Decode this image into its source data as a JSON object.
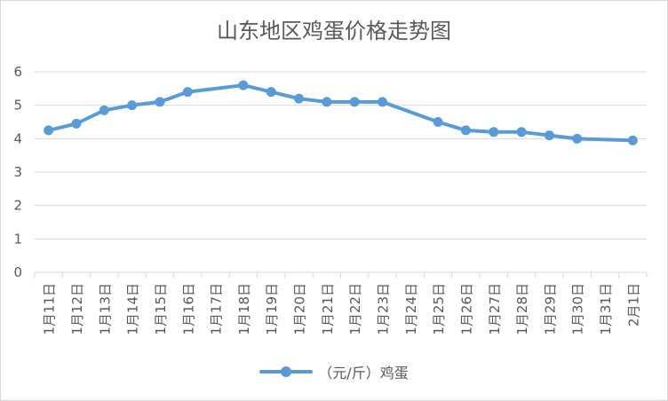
{
  "chart_data": {
    "type": "line",
    "title": "山东地区鸡蛋价格走势图",
    "categories": [
      "1月11日",
      "1月12日",
      "1月13日",
      "1月14日",
      "1月15日",
      "1月16日",
      "1月17日",
      "1月18日",
      "1月19日",
      "1月20日",
      "1月21日",
      "1月22日",
      "1月23日",
      "1月24日",
      "1月25日",
      "1月26日",
      "1月27日",
      "1月28日",
      "1月29日",
      "1月30日",
      "1月31日",
      "2月1日"
    ],
    "series": [
      {
        "name": "（元/斤）鸡蛋",
        "color": "#5b9bd5",
        "values": [
          4.25,
          4.45,
          4.85,
          5.0,
          5.1,
          5.4,
          null,
          5.6,
          5.4,
          5.2,
          5.1,
          5.1,
          5.1,
          null,
          4.5,
          4.25,
          4.2,
          4.2,
          4.1,
          4.0,
          null,
          3.95
        ]
      }
    ],
    "ylim": [
      0,
      6
    ],
    "yticks": [
      0,
      1,
      2,
      3,
      4,
      5,
      6
    ],
    "grid": true,
    "legend_position": "bottom"
  }
}
